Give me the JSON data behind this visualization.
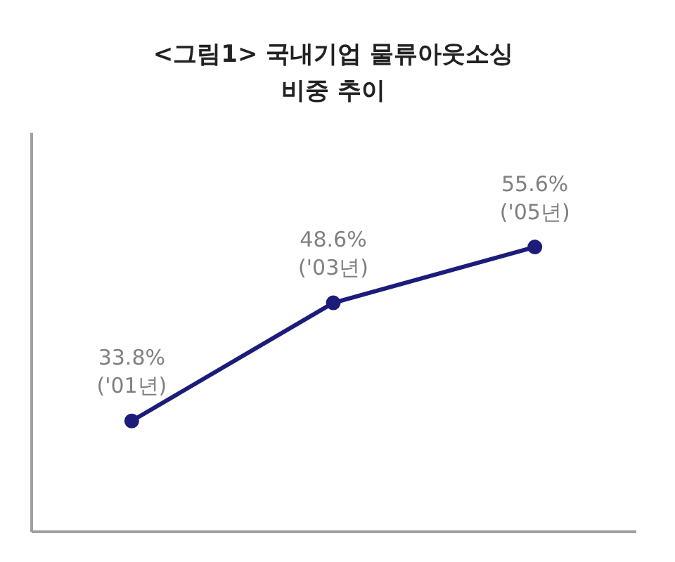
{
  "chart_data": {
    "type": "line",
    "title": "<그림1> 국내기업 물류아웃소싱\n비중 추이",
    "categories": [
      null,
      null,
      null
    ],
    "series": [
      {
        "color": "#1c1c7a",
        "values": [
          33.8,
          48.6,
          55.6
        ],
        "value_labels": [
          "33.8%\n('01년)",
          "48.6%\n('03년)",
          "55.6%\n('05년)"
        ]
      }
    ],
    "ylim": [
      20,
      70
    ],
    "tick_labels": false,
    "grid": false,
    "marker": "circle",
    "line_style": "solid"
  }
}
